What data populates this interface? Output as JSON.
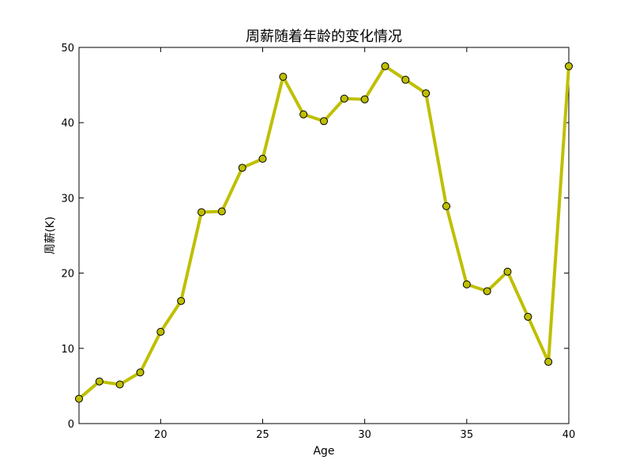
{
  "chart_data": {
    "type": "line",
    "title": "周薪随着年龄的变化情况",
    "xlabel": "Age",
    "ylabel": "周薪(K)",
    "xlim": [
      16,
      40
    ],
    "ylim": [
      0,
      50
    ],
    "xticks": [
      20,
      25,
      30,
      35,
      40
    ],
    "yticks": [
      0,
      10,
      20,
      30,
      40,
      50
    ],
    "grid": false,
    "line_color": "#bfbf00",
    "marker_color": "#bfbf00",
    "x": [
      16,
      17,
      18,
      19,
      20,
      21,
      22,
      23,
      24,
      25,
      26,
      27,
      28,
      29,
      30,
      31,
      32,
      33,
      34,
      35,
      36,
      37,
      38,
      39,
      40
    ],
    "y": [
      3.3,
      5.6,
      5.2,
      6.8,
      12.2,
      16.3,
      28.1,
      28.2,
      34.0,
      35.2,
      46.1,
      41.1,
      40.2,
      43.2,
      43.1,
      47.5,
      45.7,
      43.9,
      28.9,
      18.5,
      17.6,
      20.2,
      14.2,
      8.2,
      47.5
    ]
  }
}
